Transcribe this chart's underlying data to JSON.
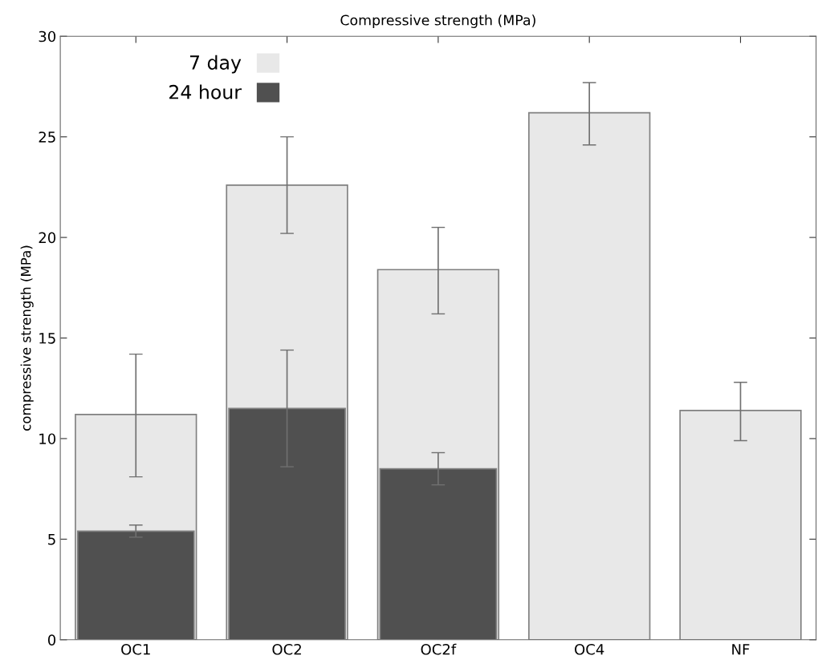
{
  "chart_data": {
    "type": "bar",
    "title": "Compressive strength (MPa)",
    "ylabel": "compressive strength (MPa)",
    "categories": [
      "OC1",
      "OC2",
      "OC2f",
      "OC4",
      "NF"
    ],
    "series": [
      {
        "name": "7 day",
        "color": "#e8e8e8",
        "values": [
          11.2,
          22.6,
          18.4,
          26.2,
          11.4
        ],
        "errors": [
          [
            8.1,
            14.2
          ],
          [
            20.2,
            25.0
          ],
          [
            16.2,
            20.5
          ],
          [
            24.6,
            27.7
          ],
          [
            9.9,
            12.8
          ]
        ]
      },
      {
        "name": "24 hour",
        "color": "#505050",
        "values": [
          5.4,
          11.5,
          8.5,
          null,
          null
        ],
        "errors": [
          [
            5.1,
            5.7
          ],
          [
            8.6,
            14.4
          ],
          [
            7.7,
            9.3
          ],
          null,
          null
        ]
      }
    ],
    "ylim": [
      0,
      30
    ],
    "yticks": [
      0,
      5,
      10,
      15,
      20,
      25,
      30
    ],
    "legend": "top left",
    "grid": false
  }
}
